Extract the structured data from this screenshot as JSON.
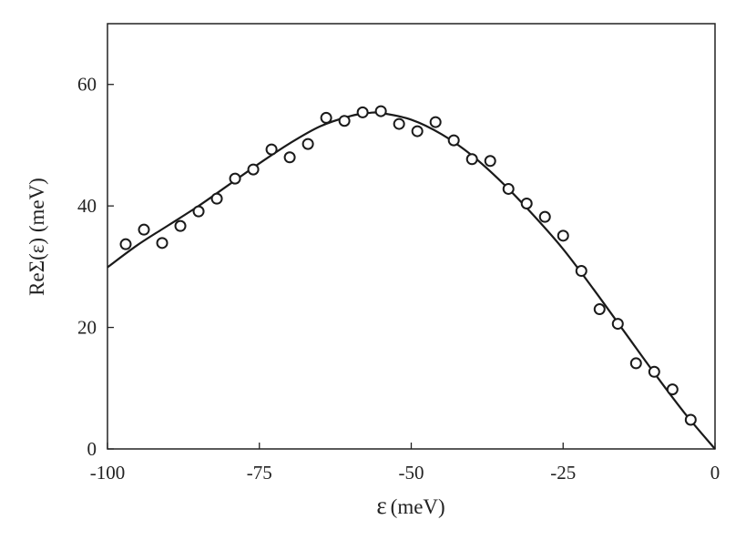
{
  "chart_data": {
    "type": "scatter",
    "title": "",
    "xlabel_symbol": "ε",
    "xlabel_unit": "(meV)",
    "ylabel": "ReΣ(ε) (meV)",
    "xlim": [
      -100,
      0
    ],
    "ylim": [
      0,
      70
    ],
    "x_ticks": [
      -100,
      -75,
      -50,
      -25,
      0
    ],
    "y_ticks": [
      0,
      20,
      40,
      60
    ],
    "grid": false,
    "legend": "none",
    "series": [
      {
        "kind": "markers",
        "marker": "open-circle",
        "points": [
          [
            -97,
            33.7
          ],
          [
            -94,
            36.1
          ],
          [
            -91,
            33.9
          ],
          [
            -88,
            36.7
          ],
          [
            -85,
            39.1
          ],
          [
            -82,
            41.2
          ],
          [
            -79,
            44.5
          ],
          [
            -76,
            46.0
          ],
          [
            -73,
            49.3
          ],
          [
            -70,
            48.0
          ],
          [
            -67,
            50.2
          ],
          [
            -64,
            54.5
          ],
          [
            -61,
            54.0
          ],
          [
            -58,
            55.4
          ],
          [
            -55,
            55.6
          ],
          [
            -52,
            53.5
          ],
          [
            -49,
            52.3
          ],
          [
            -46,
            53.8
          ],
          [
            -43,
            50.8
          ],
          [
            -40,
            47.7
          ],
          [
            -37,
            47.4
          ],
          [
            -34,
            42.8
          ],
          [
            -31,
            40.4
          ],
          [
            -28,
            38.2
          ],
          [
            -25,
            35.1
          ],
          [
            -22,
            29.3
          ],
          [
            -19,
            23.0
          ],
          [
            -16,
            20.6
          ],
          [
            -13,
            14.1
          ],
          [
            -10,
            12.7
          ],
          [
            -7,
            9.8
          ],
          [
            -4,
            4.8
          ]
        ]
      },
      {
        "kind": "line",
        "points": [
          [
            -100,
            29.9
          ],
          [
            -95,
            33.6
          ],
          [
            -90,
            36.8
          ],
          [
            -85,
            40.0
          ],
          [
            -80,
            43.5
          ],
          [
            -75,
            47.0
          ],
          [
            -70,
            50.3
          ],
          [
            -65,
            53.1
          ],
          [
            -60,
            54.8
          ],
          [
            -57,
            55.3
          ],
          [
            -55,
            55.3
          ],
          [
            -50,
            54.2
          ],
          [
            -45,
            51.8
          ],
          [
            -40,
            48.3
          ],
          [
            -35,
            43.8
          ],
          [
            -30,
            38.6
          ],
          [
            -25,
            32.9
          ],
          [
            -20,
            26.3
          ],
          [
            -15,
            19.4
          ],
          [
            -10,
            12.5
          ],
          [
            -5,
            5.9
          ],
          [
            0,
            0.0
          ]
        ]
      }
    ]
  }
}
